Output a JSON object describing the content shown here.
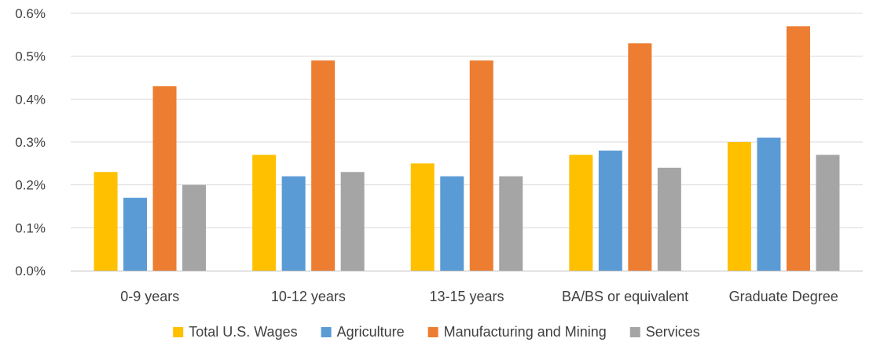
{
  "chart_data": {
    "type": "bar",
    "categories": [
      "0-9 years",
      "10-12 years",
      "13-15 years",
      "BA/BS or equivalent",
      "Graduate Degree"
    ],
    "series": [
      {
        "name": "Total U.S. Wages",
        "color": "#FFC000",
        "values": [
          0.23,
          0.27,
          0.25,
          0.27,
          0.3
        ]
      },
      {
        "name": "Agriculture",
        "color": "#5B9BD5",
        "values": [
          0.17,
          0.22,
          0.22,
          0.28,
          0.31
        ]
      },
      {
        "name": "Manufacturing and Mining",
        "color": "#ED7D31",
        "values": [
          0.43,
          0.49,
          0.49,
          0.53,
          0.57
        ]
      },
      {
        "name": "Services",
        "color": "#A5A5A5",
        "values": [
          0.2,
          0.23,
          0.22,
          0.24,
          0.27
        ]
      }
    ],
    "yticks": [
      "0.0%",
      "0.1%",
      "0.2%",
      "0.3%",
      "0.4%",
      "0.5%",
      "0.6%"
    ],
    "ylim": [
      0,
      0.6
    ],
    "grid": true,
    "legend_position": "bottom",
    "gridline_color": "#D9D9D9",
    "axis_line_color": "#BFBFBF"
  }
}
